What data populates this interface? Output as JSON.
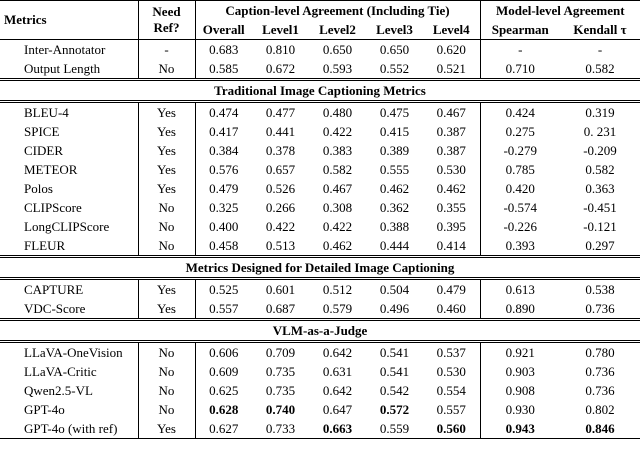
{
  "table": {
    "header": {
      "metrics": "Metrics",
      "need_ref": "Need Ref?",
      "caption_group": "Caption-level Agreement (Including Tie)",
      "model_group": "Model-level Agreement",
      "columns": [
        "Overall",
        "Level1",
        "Level2",
        "Level3",
        "Level4",
        "Spearman",
        "Kendall τ"
      ]
    },
    "groups": [
      {
        "rows": [
          {
            "cells": [
              "Inter-Annotator",
              "-",
              "0.683",
              "0.810",
              "0.650",
              "0.650",
              "0.620",
              "-",
              "-"
            ]
          },
          {
            "cells": [
              "Output Length",
              "No",
              "0.585",
              "0.672",
              "0.593",
              "0.552",
              "0.521",
              "0.710",
              "0.582"
            ]
          }
        ]
      },
      {
        "title": "Traditional Image Captioning Metrics",
        "rows": [
          {
            "cells": [
              "BLEU-4",
              "Yes",
              "0.474",
              "0.477",
              "0.480",
              "0.475",
              "0.467",
              "0.424",
              "0.319"
            ]
          },
          {
            "cells": [
              "SPICE",
              "Yes",
              "0.417",
              "0.441",
              "0.422",
              "0.415",
              "0.387",
              "0.275",
              "0. 231"
            ]
          },
          {
            "cells": [
              "CIDER",
              "Yes",
              "0.384",
              "0.378",
              "0.383",
              "0.389",
              "0.387",
              "-0.279",
              "-0.209"
            ]
          },
          {
            "cells": [
              "METEOR",
              "Yes",
              "0.576",
              "0.657",
              "0.582",
              "0.555",
              "0.530",
              "0.785",
              "0.582"
            ]
          },
          {
            "cells": [
              "Polos",
              "Yes",
              "0.479",
              "0.526",
              "0.467",
              "0.462",
              "0.462",
              "0.420",
              "0.363"
            ]
          },
          {
            "cells": [
              "CLIPScore",
              "No",
              "0.325",
              "0.266",
              "0.308",
              "0.362",
              "0.355",
              "-0.574",
              "-0.451"
            ]
          },
          {
            "cells": [
              "LongCLIPScore",
              "No",
              "0.400",
              "0.422",
              "0.422",
              "0.388",
              "0.395",
              "-0.226",
              "-0.121"
            ]
          },
          {
            "cells": [
              "FLEUR",
              "No",
              "0.458",
              "0.513",
              "0.462",
              "0.444",
              "0.414",
              "0.393",
              "0.297"
            ]
          }
        ]
      },
      {
        "title": "Metrics Designed for Detailed Image Captioning",
        "rows": [
          {
            "cells": [
              "CAPTURE",
              "Yes",
              "0.525",
              "0.601",
              "0.512",
              "0.504",
              "0.479",
              "0.613",
              "0.538"
            ]
          },
          {
            "cells": [
              "VDC-Score",
              "Yes",
              "0.557",
              "0.687",
              "0.579",
              "0.496",
              "0.460",
              "0.890",
              "0.736"
            ]
          }
        ]
      },
      {
        "title": "VLM-as-a-Judge",
        "rows": [
          {
            "cells": [
              "LLaVA-OneVision",
              "No",
              "0.606",
              "0.709",
              "0.642",
              "0.541",
              "0.537",
              "0.921",
              "0.780"
            ]
          },
          {
            "cells": [
              "LLaVA-Critic",
              "No",
              "0.609",
              "0.735",
              "0.631",
              "0.541",
              "0.530",
              "0.903",
              "0.736"
            ]
          },
          {
            "cells": [
              "Qwen2.5-VL",
              "No",
              "0.625",
              "0.735",
              "0.642",
              "0.542",
              "0.554",
              "0.908",
              "0.736"
            ]
          },
          {
            "cells": [
              "GPT-4o",
              "No",
              "0.628",
              "0.740",
              "0.647",
              "0.572",
              "0.557",
              "0.930",
              "0.802"
            ],
            "bold": [
              2,
              3,
              5
            ]
          },
          {
            "cells": [
              "GPT-4o (with ref)",
              "Yes",
              "0.627",
              "0.733",
              "0.663",
              "0.559",
              "0.560",
              "0.943",
              "0.846"
            ],
            "bold": [
              4,
              6,
              7,
              8
            ]
          }
        ]
      }
    ]
  }
}
